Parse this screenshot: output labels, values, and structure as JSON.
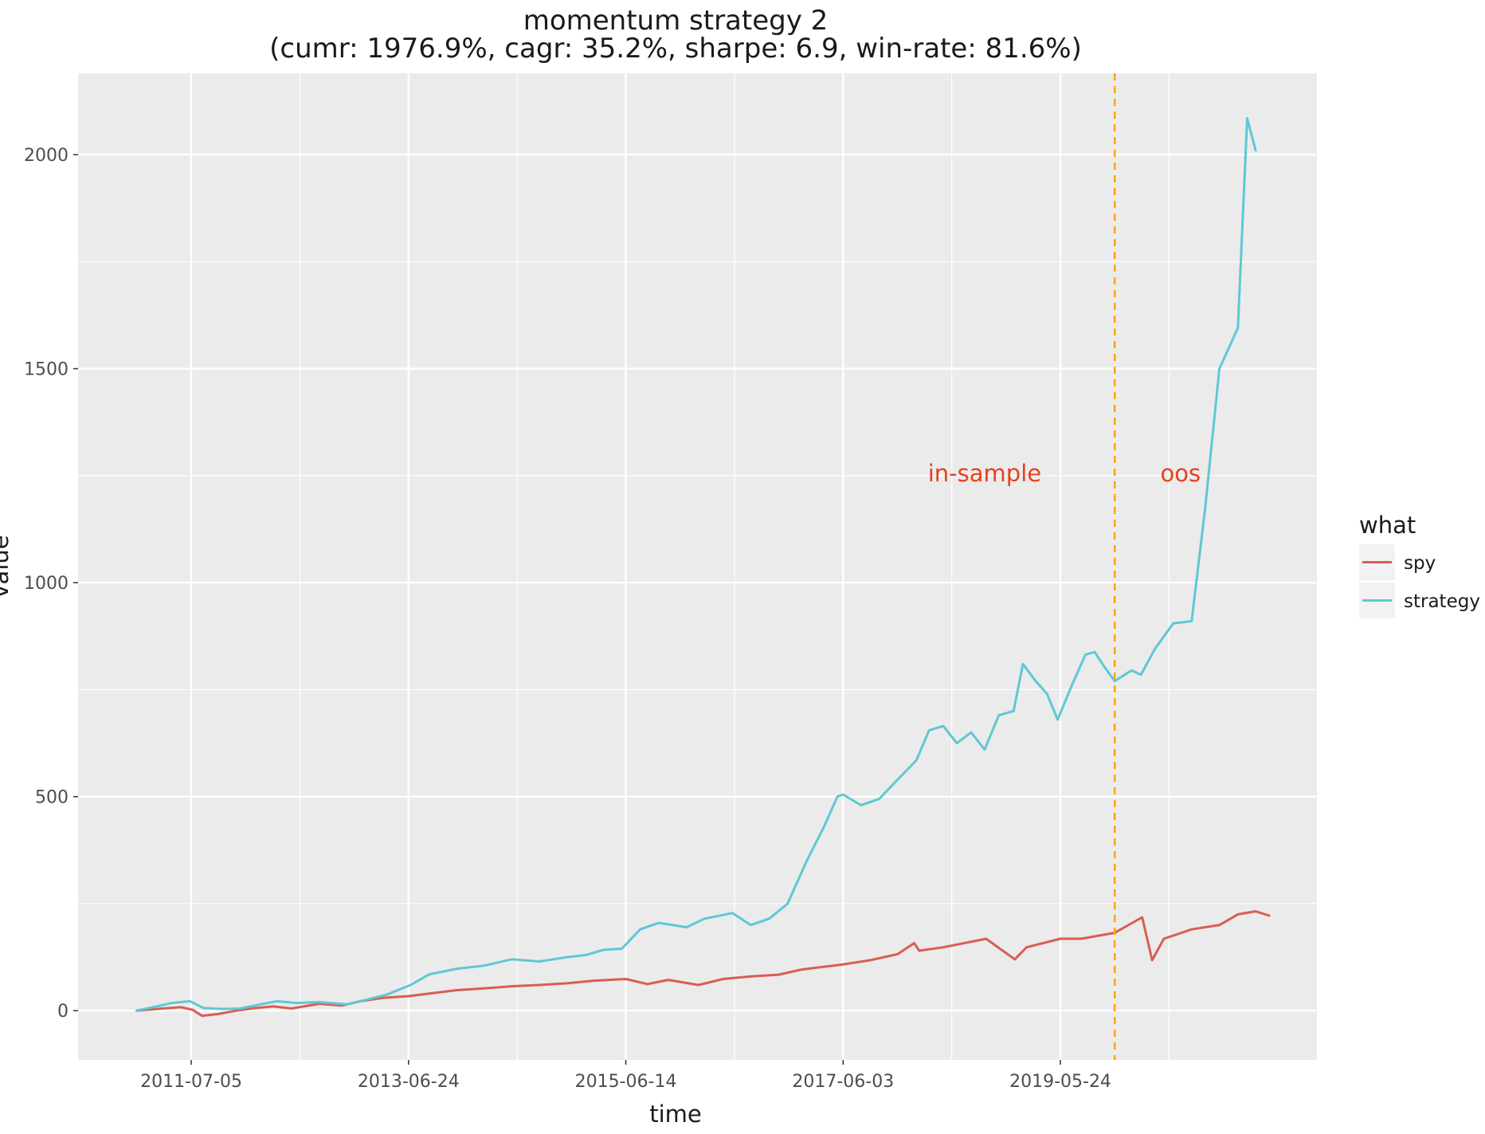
{
  "chart_data": {
    "type": "line",
    "title": "momentum strategy 2",
    "subtitle": "(cumr: 1976.9%, cagr: 35.2%, sharpe: 6.9, win-rate: 81.6%)",
    "xlabel": "time",
    "ylabel": "value",
    "x_ticks": [
      "2011-07-05",
      "2013-06-24",
      "2015-06-14",
      "2017-06-03",
      "2019-05-24"
    ],
    "y_ticks": [
      0,
      500,
      1000,
      1500,
      2000
    ],
    "ylim": [
      -115,
      2190
    ],
    "xlim": [
      "2010-06-25",
      "2021-09-20"
    ],
    "grid": true,
    "legend": {
      "title": "what",
      "position": "right"
    },
    "colors": {
      "spy": "#d95d54",
      "strategy": "#5ec8d4",
      "split": "#ffa500",
      "annotation": "#e8401c",
      "panel": "#ebebeb",
      "grid": "#ffffff"
    },
    "split_date": "2019-11-20",
    "annotations": [
      {
        "text": "in-sample",
        "x": "2018-09-15",
        "y": 1255
      },
      {
        "text": "oos",
        "x": "2020-06-25",
        "y": 1255
      }
    ],
    "series": [
      {
        "name": "spy",
        "color": "#d95d54",
        "points": [
          [
            "2011-01-05",
            0
          ],
          [
            "2011-04-01",
            5
          ],
          [
            "2011-06-01",
            8
          ],
          [
            "2011-07-10",
            2
          ],
          [
            "2011-08-10",
            -12
          ],
          [
            "2011-10-01",
            -8
          ],
          [
            "2011-12-01",
            0
          ],
          [
            "2012-02-01",
            6
          ],
          [
            "2012-04-01",
            10
          ],
          [
            "2012-06-01",
            5
          ],
          [
            "2012-09-01",
            16
          ],
          [
            "2012-11-15",
            12
          ],
          [
            "2013-01-15",
            22
          ],
          [
            "2013-04-01",
            30
          ],
          [
            "2013-06-24",
            34
          ],
          [
            "2013-09-01",
            40
          ],
          [
            "2013-12-01",
            48
          ],
          [
            "2014-03-01",
            52
          ],
          [
            "2014-06-01",
            57
          ],
          [
            "2014-09-01",
            60
          ],
          [
            "2014-12-01",
            64
          ],
          [
            "2015-03-01",
            70
          ],
          [
            "2015-06-14",
            74
          ],
          [
            "2015-08-25",
            62
          ],
          [
            "2015-11-01",
            72
          ],
          [
            "2016-02-10",
            60
          ],
          [
            "2016-05-01",
            74
          ],
          [
            "2016-08-01",
            80
          ],
          [
            "2016-11-01",
            84
          ],
          [
            "2017-01-15",
            96
          ],
          [
            "2017-06-03",
            108
          ],
          [
            "2017-09-01",
            118
          ],
          [
            "2017-12-01",
            132
          ],
          [
            "2018-01-25",
            158
          ],
          [
            "2018-02-10",
            140
          ],
          [
            "2018-05-01",
            148
          ],
          [
            "2018-09-20",
            168
          ],
          [
            "2018-12-24",
            120
          ],
          [
            "2019-02-01",
            148
          ],
          [
            "2019-05-24",
            168
          ],
          [
            "2019-08-01",
            168
          ],
          [
            "2019-11-20",
            182
          ],
          [
            "2020-02-19",
            218
          ],
          [
            "2020-03-23",
            118
          ],
          [
            "2020-05-01",
            168
          ],
          [
            "2020-08-01",
            190
          ],
          [
            "2020-11-01",
            200
          ],
          [
            "2021-01-01",
            225
          ],
          [
            "2021-03-01",
            232
          ],
          [
            "2021-04-15",
            222
          ]
        ]
      },
      {
        "name": "strategy",
        "color": "#5ec8d4",
        "points": [
          [
            "2011-01-05",
            0
          ],
          [
            "2011-03-01",
            8
          ],
          [
            "2011-05-01",
            18
          ],
          [
            "2011-07-01",
            22
          ],
          [
            "2011-08-15",
            6
          ],
          [
            "2011-10-15",
            4
          ],
          [
            "2011-12-15",
            5
          ],
          [
            "2012-02-15",
            14
          ],
          [
            "2012-04-15",
            22
          ],
          [
            "2012-06-15",
            18
          ],
          [
            "2012-09-01",
            20
          ],
          [
            "2012-12-01",
            15
          ],
          [
            "2013-02-01",
            25
          ],
          [
            "2013-04-15",
            38
          ],
          [
            "2013-07-01",
            60
          ],
          [
            "2013-09-01",
            85
          ],
          [
            "2013-12-01",
            98
          ],
          [
            "2014-03-01",
            105
          ],
          [
            "2014-06-01",
            120
          ],
          [
            "2014-09-01",
            115
          ],
          [
            "2014-12-01",
            125
          ],
          [
            "2015-02-01",
            130
          ],
          [
            "2015-04-01",
            142
          ],
          [
            "2015-06-01",
            145
          ],
          [
            "2015-08-01",
            190
          ],
          [
            "2015-10-01",
            205
          ],
          [
            "2016-01-01",
            195
          ],
          [
            "2016-03-01",
            215
          ],
          [
            "2016-06-01",
            228
          ],
          [
            "2016-08-01",
            200
          ],
          [
            "2016-10-01",
            215
          ],
          [
            "2016-12-01",
            250
          ],
          [
            "2017-02-01",
            348
          ],
          [
            "2017-04-01",
            430
          ],
          [
            "2017-05-15",
            500
          ],
          [
            "2017-06-03",
            505
          ],
          [
            "2017-08-01",
            480
          ],
          [
            "2017-10-01",
            495
          ],
          [
            "2017-12-01",
            540
          ],
          [
            "2018-02-01",
            585
          ],
          [
            "2018-03-15",
            655
          ],
          [
            "2018-05-01",
            665
          ],
          [
            "2018-06-15",
            625
          ],
          [
            "2018-08-01",
            650
          ],
          [
            "2018-09-15",
            610
          ],
          [
            "2018-11-01",
            690
          ],
          [
            "2018-12-20",
            700
          ],
          [
            "2019-01-20",
            810
          ],
          [
            "2019-03-01",
            772
          ],
          [
            "2019-04-10",
            740
          ],
          [
            "2019-05-15",
            680
          ],
          [
            "2019-07-01",
            760
          ],
          [
            "2019-08-15",
            832
          ],
          [
            "2019-09-15",
            838
          ],
          [
            "2019-10-15",
            805
          ],
          [
            "2019-11-20",
            770
          ],
          [
            "2020-01-15",
            795
          ],
          [
            "2020-02-15",
            785
          ],
          [
            "2020-04-01",
            845
          ],
          [
            "2020-06-01",
            905
          ],
          [
            "2020-08-01",
            910
          ],
          [
            "2020-09-15",
            1175
          ],
          [
            "2020-11-01",
            1500
          ],
          [
            "2021-01-01",
            1595
          ],
          [
            "2021-02-01",
            2085
          ],
          [
            "2021-03-01",
            2010
          ]
        ]
      }
    ]
  }
}
